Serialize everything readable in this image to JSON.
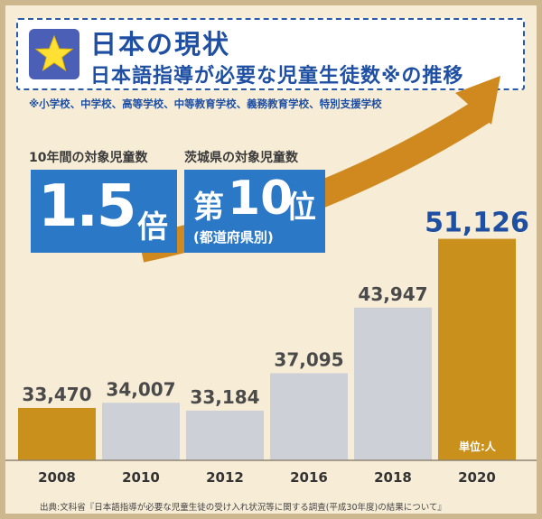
{
  "header": {
    "title": "日本の現状",
    "subtitle": "日本語指導が必要な児童生徒数※の推移",
    "note": "※小学校、中学校、高等学校、中等教育学校、義務教育学校、特別支援学校"
  },
  "stats": [
    {
      "label": "10年間の対象児童数",
      "value_number": "1.5",
      "value_unit": "倍"
    },
    {
      "label": "茨城県の対象児童数",
      "value_prefix": "第",
      "value_number": "10",
      "value_unit": "位",
      "value_sub": "(都道府県別)"
    }
  ],
  "unit_label": "単位:人",
  "source": "出典:文科省『日本語指導が必要な児童生徒の受け入れ状況等に関する調査(平成30年度)の結果について』",
  "colors": {
    "highlight_bar": "#c9901c",
    "normal_bar": "#cdd0d6",
    "accent_blue": "#1e4fa3",
    "arrow": "#d0891e"
  },
  "chart_data": {
    "type": "bar",
    "categories": [
      "2008",
      "2010",
      "2012",
      "2016",
      "2018",
      "2020"
    ],
    "values": [
      33470,
      34007,
      33184,
      37095,
      43947,
      51126
    ],
    "value_labels": [
      "33,470",
      "34,007",
      "33,184",
      "37,095",
      "43,947",
      "51,126"
    ],
    "highlight": [
      "2008",
      "2020"
    ],
    "ylim": [
      28000,
      52500
    ],
    "grid": false
  }
}
